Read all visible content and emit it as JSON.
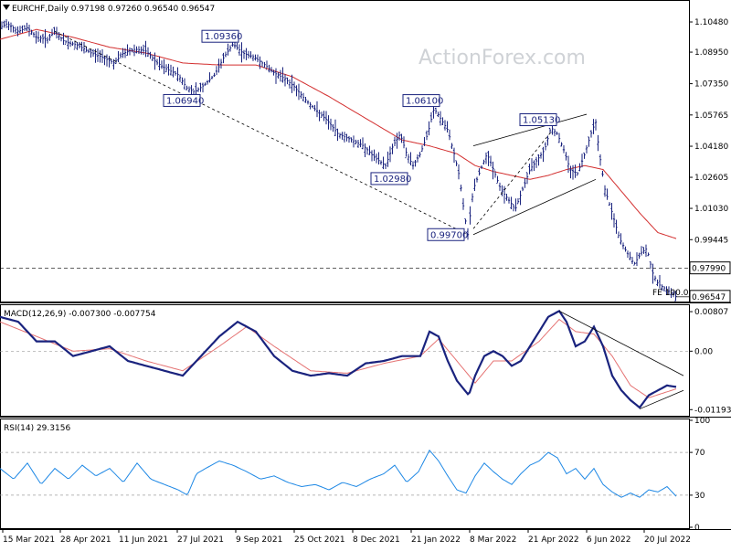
{
  "header": {
    "main": "EURCHF,Daily  0.97198 0.97260 0.96540 0.96547",
    "macd": "MACD(12,26,9) -0.007300 -0.007754",
    "rsi": "RSI(14) 29.3156"
  },
  "watermark": "ActionForex.com",
  "colors": {
    "bar": "#1a237e",
    "sma": "#d32f2f",
    "macd_line": "#1a237e",
    "signal_line": "#e57373",
    "rsi_line": "#1e88e5",
    "trendline": "#000000",
    "annotation": "#1a237e"
  },
  "icons": {
    "menu": "triangle-down-icon"
  },
  "chart_data": [
    {
      "type": "ohlc",
      "symbol": "EURCHF",
      "timeframe": "Daily",
      "last_bar": {
        "open": 0.97198,
        "high": 0.9726,
        "low": 0.9654,
        "close": 0.96547
      },
      "y_ticks": [
        "1.10480",
        "1.08950",
        "1.07350",
        "1.05765",
        "1.04180",
        "1.02605",
        "1.01030",
        "0.99445"
      ],
      "price_labels": {
        "level": "0.97990",
        "current": "0.96547"
      },
      "ylim": [
        0.964,
        1.115
      ],
      "x_ticks": [
        "15 Mar 2021",
        "28 Apr 2021",
        "11 Jun 2021",
        "27 Jul 2021",
        "9 Sep 2021",
        "25 Oct 2021",
        "8 Dec 2021",
        "21 Jan 2022",
        "8 Mar 2022",
        "21 Apr 2022",
        "6 Jun 2022",
        "20 Jul 2022"
      ],
      "path": [
        [
          0,
          1.102
        ],
        [
          8,
          1.104
        ],
        [
          20,
          1.1
        ],
        [
          30,
          1.102
        ],
        [
          40,
          1.097
        ],
        [
          52,
          1.096
        ],
        [
          60,
          1.1
        ],
        [
          70,
          1.095
        ],
        [
          85,
          1.093
        ],
        [
          100,
          1.089
        ],
        [
          112,
          1.087
        ],
        [
          125,
          1.084
        ],
        [
          135,
          1.089
        ],
        [
          148,
          1.091
        ],
        [
          160,
          1.09
        ],
        [
          172,
          1.084
        ],
        [
          182,
          1.081
        ],
        [
          195,
          1.078
        ],
        [
          205,
          1.071
        ],
        [
          213,
          1.0694
        ],
        [
          224,
          1.073
        ],
        [
          235,
          1.078
        ],
        [
          245,
          1.087
        ],
        [
          255,
          1.0936
        ],
        [
          266,
          1.089
        ],
        [
          278,
          1.087
        ],
        [
          290,
          1.083
        ],
        [
          300,
          1.079
        ],
        [
          312,
          1.076
        ],
        [
          322,
          1.072
        ],
        [
          333,
          1.066
        ],
        [
          346,
          1.06
        ],
        [
          358,
          1.055
        ],
        [
          370,
          1.048
        ],
        [
          385,
          1.045
        ],
        [
          398,
          1.042
        ],
        [
          410,
          1.036
        ],
        [
          422,
          1.032
        ],
        [
          430,
          1.042
        ],
        [
          438,
          1.048
        ],
        [
          445,
          1.038
        ],
        [
          452,
          1.032
        ],
        [
          460,
          1.038
        ],
        [
          468,
          1.048
        ],
        [
          475,
          1.061
        ],
        [
          482,
          1.056
        ],
        [
          490,
          1.05
        ],
        [
          497,
          1.038
        ],
        [
          503,
          1.026
        ],
        [
          508,
          1.008
        ],
        [
          512,
          0.997
        ],
        [
          518,
          1.02
        ],
        [
          526,
          1.03
        ],
        [
          533,
          1.038
        ],
        [
          540,
          1.03
        ],
        [
          548,
          1.02
        ],
        [
          556,
          1.015
        ],
        [
          564,
          1.01
        ],
        [
          572,
          1.02
        ],
        [
          580,
          1.03
        ],
        [
          588,
          1.035
        ],
        [
          596,
          1.04
        ],
        [
          603,
          1.0513
        ],
        [
          610,
          1.048
        ],
        [
          617,
          1.04
        ],
        [
          624,
          1.03
        ],
        [
          632,
          1.028
        ],
        [
          640,
          1.038
        ],
        [
          648,
          1.05
        ],
        [
          652,
          1.054
        ],
        [
          656,
          1.038
        ],
        [
          662,
          1.02
        ],
        [
          670,
          1.008
        ],
        [
          678,
          0.995
        ],
        [
          686,
          0.988
        ],
        [
          694,
          0.982
        ],
        [
          702,
          0.988
        ],
        [
          708,
          0.99
        ],
        [
          714,
          0.978
        ],
        [
          720,
          0.972
        ],
        [
          727,
          0.97
        ],
        [
          733,
          0.968
        ],
        [
          740,
          0.9655
        ]
      ],
      "sma_path": [
        [
          0,
          1.096
        ],
        [
          40,
          1.101
        ],
        [
          80,
          1.097
        ],
        [
          120,
          1.092
        ],
        [
          160,
          1.089
        ],
        [
          200,
          1.084
        ],
        [
          240,
          1.083
        ],
        [
          280,
          1.083
        ],
        [
          320,
          1.077
        ],
        [
          360,
          1.067
        ],
        [
          400,
          1.056
        ],
        [
          440,
          1.045
        ],
        [
          470,
          1.042
        ],
        [
          500,
          1.038
        ],
        [
          520,
          1.032
        ],
        [
          540,
          1.029
        ],
        [
          560,
          1.027
        ],
        [
          580,
          1.025
        ],
        [
          600,
          1.027
        ],
        [
          620,
          1.03
        ],
        [
          640,
          1.032
        ],
        [
          660,
          1.03
        ],
        [
          680,
          1.019
        ],
        [
          700,
          1.008
        ],
        [
          720,
          0.998
        ],
        [
          740,
          0.995
        ]
      ],
      "annotations": [
        {
          "label": "1.09360",
          "value": 1.0936,
          "anchor_x": 255,
          "side": "above"
        },
        {
          "label": "1.06940",
          "value": 1.0694,
          "anchor_x": 213,
          "side": "below"
        },
        {
          "label": "1.06100",
          "value": 1.061,
          "anchor_x": 475,
          "side": "above"
        },
        {
          "label": "1.02980",
          "value": 1.0298,
          "anchor_x": 440,
          "side": "below"
        },
        {
          "label": "1.05130",
          "value": 1.0513,
          "anchor_x": 603,
          "side": "above"
        },
        {
          "label": "0.99700",
          "value": 0.997,
          "anchor_x": 512,
          "side": "left"
        }
      ],
      "fe_label": "FE 100.0",
      "trendlines": [
        {
          "style": "dashed",
          "points": [
            [
              60,
              1.1
            ],
            [
              512,
              0.997
            ]
          ]
        },
        {
          "style": "solid",
          "points": [
            [
              518,
              1.042
            ],
            [
              642,
              1.058
            ]
          ]
        },
        {
          "style": "solid",
          "points": [
            [
              518,
              0.997
            ],
            [
              652,
              1.025
            ]
          ]
        },
        {
          "style": "dashed",
          "points": [
            [
              518,
              1.0
            ],
            [
              603,
              1.049
            ]
          ]
        }
      ]
    },
    {
      "type": "line",
      "name": "MACD(12,26,9)",
      "values": {
        "macd": -0.0073,
        "signal": -0.007754
      },
      "y_ticks": [
        "0.00807",
        "0.00",
        "-0.011933"
      ],
      "ylim": [
        -0.013,
        0.0092
      ],
      "zero_line": true,
      "macd_path": [
        [
          0,
          0.007
        ],
        [
          20,
          0.006
        ],
        [
          40,
          0.002
        ],
        [
          60,
          0.002
        ],
        [
          80,
          -0.001
        ],
        [
          100,
          0.0
        ],
        [
          120,
          0.001
        ],
        [
          140,
          -0.002
        ],
        [
          160,
          -0.003
        ],
        [
          180,
          -0.004
        ],
        [
          200,
          -0.005
        ],
        [
          220,
          -0.001
        ],
        [
          240,
          0.003
        ],
        [
          260,
          0.006
        ],
        [
          280,
          0.004
        ],
        [
          300,
          -0.001
        ],
        [
          320,
          -0.004
        ],
        [
          340,
          -0.005
        ],
        [
          360,
          -0.0045
        ],
        [
          380,
          -0.005
        ],
        [
          400,
          -0.0025
        ],
        [
          420,
          -0.002
        ],
        [
          440,
          -0.001
        ],
        [
          460,
          -0.001
        ],
        [
          470,
          0.004
        ],
        [
          480,
          0.003
        ],
        [
          490,
          -0.002
        ],
        [
          500,
          -0.006
        ],
        [
          513,
          -0.009
        ],
        [
          520,
          -0.005
        ],
        [
          530,
          -0.001
        ],
        [
          540,
          0.0
        ],
        [
          550,
          -0.001
        ],
        [
          560,
          -0.003
        ],
        [
          570,
          -0.002
        ],
        [
          580,
          0.001
        ],
        [
          590,
          0.004
        ],
        [
          600,
          0.007
        ],
        [
          612,
          0.0082
        ],
        [
          620,
          0.006
        ],
        [
          630,
          0.001
        ],
        [
          640,
          0.002
        ],
        [
          650,
          0.005
        ],
        [
          660,
          0.001
        ],
        [
          670,
          -0.005
        ],
        [
          680,
          -0.008
        ],
        [
          690,
          -0.01
        ],
        [
          700,
          -0.0115
        ],
        [
          710,
          -0.009
        ],
        [
          720,
          -0.008
        ],
        [
          730,
          -0.007
        ],
        [
          740,
          -0.0073
        ]
      ],
      "signal_path": [
        [
          0,
          0.006
        ],
        [
          40,
          0.003
        ],
        [
          80,
          0.0
        ],
        [
          120,
          0.0005
        ],
        [
          160,
          -0.002
        ],
        [
          200,
          -0.004
        ],
        [
          240,
          0.001
        ],
        [
          270,
          0.005
        ],
        [
          300,
          0.001
        ],
        [
          340,
          -0.004
        ],
        [
          380,
          -0.0045
        ],
        [
          420,
          -0.0025
        ],
        [
          460,
          -0.001
        ],
        [
          480,
          0.0025
        ],
        [
          500,
          -0.002
        ],
        [
          520,
          -0.0065
        ],
        [
          540,
          -0.002
        ],
        [
          560,
          -0.002
        ],
        [
          590,
          0.002
        ],
        [
          612,
          0.0065
        ],
        [
          630,
          0.004
        ],
        [
          650,
          0.0035
        ],
        [
          670,
          -0.001
        ],
        [
          690,
          -0.007
        ],
        [
          710,
          -0.0095
        ],
        [
          740,
          -0.0077
        ]
      ],
      "trendlines": [
        {
          "style": "solid",
          "points": [
            [
              612,
              0.0082
            ],
            [
              748,
              -0.005
            ]
          ]
        },
        {
          "style": "solid",
          "points": [
            [
              700,
              -0.0118
            ],
            [
              748,
              -0.008
            ]
          ]
        }
      ]
    },
    {
      "type": "line",
      "name": "RSI(14)",
      "value": 29.3156,
      "y_ticks": [
        "100",
        "70",
        "30",
        "0"
      ],
      "ylim": [
        0,
        100
      ],
      "levels": [
        70,
        30
      ],
      "path": [
        [
          0,
          55
        ],
        [
          15,
          45
        ],
        [
          30,
          60
        ],
        [
          45,
          40
        ],
        [
          60,
          55
        ],
        [
          75,
          45
        ],
        [
          90,
          58
        ],
        [
          105,
          48
        ],
        [
          120,
          55
        ],
        [
          135,
          42
        ],
        [
          150,
          60
        ],
        [
          165,
          45
        ],
        [
          180,
          40
        ],
        [
          195,
          35
        ],
        [
          205,
          30
        ],
        [
          215,
          50
        ],
        [
          225,
          55
        ],
        [
          240,
          62
        ],
        [
          255,
          58
        ],
        [
          270,
          52
        ],
        [
          285,
          45
        ],
        [
          300,
          48
        ],
        [
          315,
          42
        ],
        [
          330,
          38
        ],
        [
          345,
          40
        ],
        [
          360,
          35
        ],
        [
          375,
          42
        ],
        [
          390,
          38
        ],
        [
          405,
          45
        ],
        [
          420,
          50
        ],
        [
          432,
          58
        ],
        [
          445,
          42
        ],
        [
          458,
          52
        ],
        [
          470,
          72
        ],
        [
          480,
          62
        ],
        [
          490,
          48
        ],
        [
          500,
          35
        ],
        [
          510,
          32
        ],
        [
          520,
          48
        ],
        [
          530,
          60
        ],
        [
          540,
          52
        ],
        [
          550,
          45
        ],
        [
          560,
          40
        ],
        [
          570,
          50
        ],
        [
          580,
          58
        ],
        [
          590,
          62
        ],
        [
          600,
          70
        ],
        [
          610,
          65
        ],
        [
          620,
          50
        ],
        [
          630,
          55
        ],
        [
          640,
          45
        ],
        [
          650,
          55
        ],
        [
          660,
          40
        ],
        [
          670,
          33
        ],
        [
          680,
          28
        ],
        [
          690,
          32
        ],
        [
          700,
          28
        ],
        [
          710,
          35
        ],
        [
          720,
          33
        ],
        [
          730,
          38
        ],
        [
          740,
          29
        ]
      ]
    }
  ]
}
